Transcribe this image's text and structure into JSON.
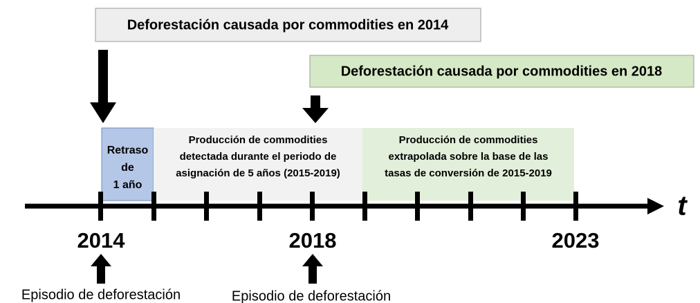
{
  "top_boxes": [
    {
      "label": "Deforestación causada por commodities en 2014"
    },
    {
      "label": "Deforestación causada por commodities en 2018"
    }
  ],
  "regions": [
    {
      "lines": [
        "Retraso",
        "de",
        "1 año"
      ]
    },
    {
      "lines": [
        "Producción de commodities",
        "detectada durante el periodo de",
        "asignación de 5 años (2015-2019)"
      ]
    },
    {
      "lines": [
        "Producción de commodities",
        "extrapolada sobre la base de las",
        "tasas de conversión de 2015-2019"
      ]
    }
  ],
  "axis_label": "t",
  "years": [
    "2014",
    "2018",
    "2023"
  ],
  "episodes": [
    "Episodio de deforestación",
    "Episodio de deforestación"
  ]
}
